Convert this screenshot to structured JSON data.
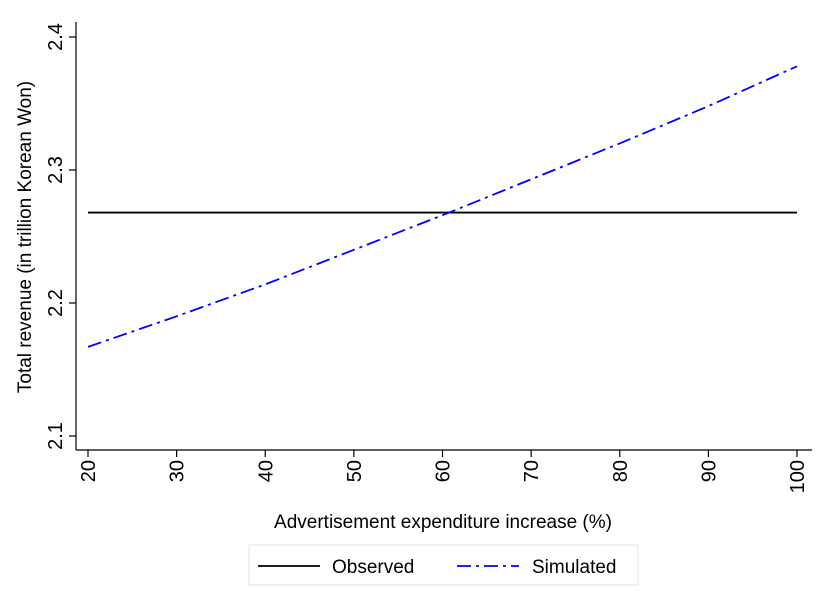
{
  "chart_data": {
    "type": "line",
    "title": "",
    "xlabel": "Advertisement expenditure increase (%)",
    "ylabel": "Total revenue (in trillion Korean Won)",
    "xlim": [
      20,
      100
    ],
    "ylim": [
      2.1,
      2.4
    ],
    "xticks": [
      "20",
      "30",
      "40",
      "50",
      "60",
      "70",
      "80",
      "90",
      "100"
    ],
    "yticks": [
      "2.1",
      "2.2",
      "2.3",
      "2.4"
    ],
    "x": [
      20,
      30,
      40,
      50,
      60,
      70,
      80,
      90,
      100
    ],
    "series": [
      {
        "name": "Observed",
        "color": "#000000",
        "style": "solid",
        "values": [
          2.268,
          2.268,
          2.268,
          2.268,
          2.268,
          2.268,
          2.268,
          2.268,
          2.268
        ]
      },
      {
        "name": "Simulated",
        "color": "#0000ff",
        "style": "dash-dot",
        "values": [
          2.167,
          2.19,
          2.214,
          2.24,
          2.266,
          2.293,
          2.32,
          2.348,
          2.378
        ]
      }
    ],
    "grid": false,
    "legend": "bottom"
  }
}
